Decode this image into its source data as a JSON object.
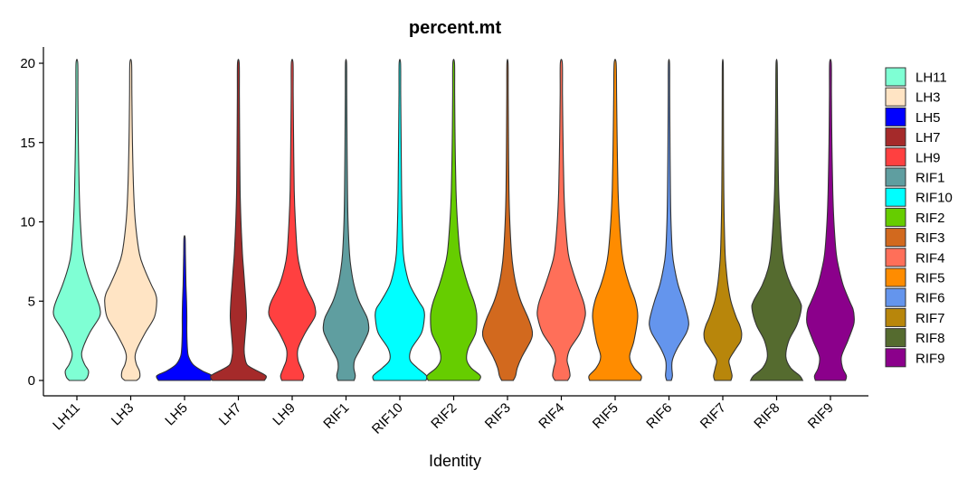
{
  "chart_data": {
    "type": "violin",
    "title": "percent.mt",
    "xlabel": "Identity",
    "ylabel": "",
    "ylim": [
      -1,
      21
    ],
    "yticks": [
      0,
      5,
      10,
      15,
      20
    ],
    "ytick_labels": [
      "0",
      "5",
      "10",
      "15",
      "20"
    ],
    "grid": false,
    "legend_position": "right",
    "categories": [
      "LH11",
      "LH3",
      "LH5",
      "LH7",
      "LH9",
      "RIF1",
      "RIF10",
      "RIF2",
      "RIF3",
      "RIF4",
      "RIF5",
      "RIF6",
      "RIF7",
      "RIF8",
      "RIF9"
    ],
    "series": [
      {
        "name": "LH11",
        "color": "#7FFFD4",
        "max": 20,
        "profile": [
          [
            0,
            0.26
          ],
          [
            0.2,
            0.36
          ],
          [
            0.6,
            0.4
          ],
          [
            1,
            0.27
          ],
          [
            1.5,
            0.17
          ],
          [
            2,
            0.2
          ],
          [
            3,
            0.44
          ],
          [
            4,
            0.78
          ],
          [
            4.5,
            0.8
          ],
          [
            5,
            0.72
          ],
          [
            6,
            0.5
          ],
          [
            7,
            0.32
          ],
          [
            8,
            0.2
          ],
          [
            10,
            0.12
          ],
          [
            12,
            0.08
          ],
          [
            15,
            0.05
          ],
          [
            18,
            0.035
          ],
          [
            20,
            0.03
          ]
        ]
      },
      {
        "name": "LH3",
        "color": "#FFE4C4",
        "max": 20,
        "profile": [
          [
            0,
            0.2
          ],
          [
            0.2,
            0.31
          ],
          [
            0.6,
            0.3
          ],
          [
            1,
            0.2
          ],
          [
            1.5,
            0.15
          ],
          [
            2,
            0.22
          ],
          [
            3,
            0.5
          ],
          [
            4,
            0.82
          ],
          [
            5,
            0.9
          ],
          [
            5.5,
            0.85
          ],
          [
            6,
            0.72
          ],
          [
            7,
            0.48
          ],
          [
            8,
            0.3
          ],
          [
            10,
            0.16
          ],
          [
            12,
            0.1
          ],
          [
            15,
            0.06
          ],
          [
            18,
            0.04
          ],
          [
            20,
            0.03
          ]
        ]
      },
      {
        "name": "LH5",
        "color": "#0000FF",
        "max": 9,
        "profile": [
          [
            0,
            0.9
          ],
          [
            0.3,
            0.96
          ],
          [
            0.6,
            0.62
          ],
          [
            1,
            0.3
          ],
          [
            1.5,
            0.14
          ],
          [
            2,
            0.1
          ],
          [
            3,
            0.08
          ],
          [
            4,
            0.08
          ],
          [
            5,
            0.07
          ],
          [
            6,
            0.05
          ],
          [
            7,
            0.04
          ],
          [
            8,
            0.03
          ],
          [
            9,
            0.02
          ]
        ]
      },
      {
        "name": "LH7",
        "color": "#A52A2A",
        "max": 20,
        "profile": [
          [
            0,
            0.9
          ],
          [
            0.3,
            0.95
          ],
          [
            0.7,
            0.55
          ],
          [
            1,
            0.3
          ],
          [
            1.5,
            0.22
          ],
          [
            2,
            0.2
          ],
          [
            3,
            0.24
          ],
          [
            4,
            0.28
          ],
          [
            5,
            0.26
          ],
          [
            6,
            0.22
          ],
          [
            7,
            0.18
          ],
          [
            8,
            0.14
          ],
          [
            10,
            0.09
          ],
          [
            12,
            0.06
          ],
          [
            15,
            0.045
          ],
          [
            18,
            0.035
          ],
          [
            20,
            0.03
          ]
        ]
      },
      {
        "name": "LH9",
        "color": "#FF4040",
        "max": 20,
        "profile": [
          [
            0,
            0.36
          ],
          [
            0.3,
            0.4
          ],
          [
            0.8,
            0.3
          ],
          [
            1.3,
            0.2
          ],
          [
            2,
            0.2
          ],
          [
            3,
            0.45
          ],
          [
            4,
            0.78
          ],
          [
            4.5,
            0.8
          ],
          [
            5,
            0.72
          ],
          [
            6,
            0.45
          ],
          [
            7,
            0.28
          ],
          [
            8,
            0.18
          ],
          [
            10,
            0.11
          ],
          [
            12,
            0.07
          ],
          [
            15,
            0.05
          ],
          [
            18,
            0.035
          ],
          [
            20,
            0.03
          ]
        ]
      },
      {
        "name": "RIF1",
        "color": "#5F9EA0",
        "max": 20,
        "profile": [
          [
            0,
            0.28
          ],
          [
            0.3,
            0.32
          ],
          [
            0.8,
            0.27
          ],
          [
            1.3,
            0.3
          ],
          [
            2,
            0.5
          ],
          [
            3,
            0.76
          ],
          [
            3.5,
            0.78
          ],
          [
            4,
            0.72
          ],
          [
            5,
            0.45
          ],
          [
            6,
            0.28
          ],
          [
            7,
            0.18
          ],
          [
            8,
            0.12
          ],
          [
            10,
            0.07
          ],
          [
            12,
            0.05
          ],
          [
            15,
            0.035
          ],
          [
            18,
            0.025
          ],
          [
            20,
            0.02
          ]
        ]
      },
      {
        "name": "RIF10",
        "color": "#00FFFF",
        "max": 20,
        "profile": [
          [
            0,
            0.9
          ],
          [
            0.3,
            0.92
          ],
          [
            0.8,
            0.6
          ],
          [
            1.3,
            0.35
          ],
          [
            2,
            0.4
          ],
          [
            3,
            0.75
          ],
          [
            4,
            0.85
          ],
          [
            4.5,
            0.82
          ],
          [
            5,
            0.65
          ],
          [
            6,
            0.35
          ],
          [
            7,
            0.2
          ],
          [
            8,
            0.12
          ],
          [
            10,
            0.08
          ],
          [
            12,
            0.06
          ],
          [
            15,
            0.045
          ],
          [
            18,
            0.03
          ],
          [
            20,
            0.025
          ]
        ]
      },
      {
        "name": "RIF2",
        "color": "#66CD00",
        "max": 20,
        "profile": [
          [
            0,
            0.88
          ],
          [
            0.3,
            0.92
          ],
          [
            0.8,
            0.6
          ],
          [
            1.3,
            0.45
          ],
          [
            2,
            0.5
          ],
          [
            3,
            0.76
          ],
          [
            4,
            0.8
          ],
          [
            4.5,
            0.77
          ],
          [
            5,
            0.7
          ],
          [
            6,
            0.5
          ],
          [
            7,
            0.34
          ],
          [
            8,
            0.22
          ],
          [
            10,
            0.13
          ],
          [
            12,
            0.08
          ],
          [
            15,
            0.05
          ],
          [
            18,
            0.035
          ],
          [
            20,
            0.03
          ]
        ]
      },
      {
        "name": "RIF3",
        "color": "#D2691E",
        "max": 20,
        "profile": [
          [
            0,
            0.2
          ],
          [
            0.3,
            0.28
          ],
          [
            0.8,
            0.34
          ],
          [
            1.5,
            0.5
          ],
          [
            2.5,
            0.8
          ],
          [
            3,
            0.86
          ],
          [
            3.5,
            0.8
          ],
          [
            4,
            0.7
          ],
          [
            5,
            0.46
          ],
          [
            6,
            0.3
          ],
          [
            7,
            0.2
          ],
          [
            8,
            0.14
          ],
          [
            10,
            0.08
          ],
          [
            12,
            0.05
          ],
          [
            15,
            0.035
          ],
          [
            18,
            0.025
          ],
          [
            20,
            0.02
          ]
        ]
      },
      {
        "name": "RIF4",
        "color": "#FF6F59",
        "max": 20,
        "profile": [
          [
            0,
            0.22
          ],
          [
            0.3,
            0.3
          ],
          [
            0.8,
            0.26
          ],
          [
            1.3,
            0.2
          ],
          [
            2,
            0.3
          ],
          [
            3,
            0.65
          ],
          [
            4,
            0.82
          ],
          [
            4.5,
            0.82
          ],
          [
            5,
            0.76
          ],
          [
            6,
            0.56
          ],
          [
            7,
            0.38
          ],
          [
            8,
            0.24
          ],
          [
            10,
            0.14
          ],
          [
            12,
            0.09
          ],
          [
            15,
            0.06
          ],
          [
            18,
            0.04
          ],
          [
            20,
            0.035
          ]
        ]
      },
      {
        "name": "RIF5",
        "color": "#FF8C00",
        "max": 20,
        "profile": [
          [
            0,
            0.88
          ],
          [
            0.3,
            0.9
          ],
          [
            0.8,
            0.65
          ],
          [
            1.5,
            0.5
          ],
          [
            2.5,
            0.65
          ],
          [
            4,
            0.78
          ],
          [
            5,
            0.7
          ],
          [
            6,
            0.5
          ],
          [
            7,
            0.34
          ],
          [
            8,
            0.24
          ],
          [
            10,
            0.15
          ],
          [
            12,
            0.1
          ],
          [
            15,
            0.07
          ],
          [
            18,
            0.05
          ],
          [
            20,
            0.035
          ]
        ]
      },
      {
        "name": "RIF6",
        "color": "#6495ED",
        "max": 20,
        "profile": [
          [
            0,
            0.08
          ],
          [
            0.3,
            0.12
          ],
          [
            0.8,
            0.1
          ],
          [
            1.3,
            0.12
          ],
          [
            2,
            0.28
          ],
          [
            3,
            0.6
          ],
          [
            3.5,
            0.68
          ],
          [
            4,
            0.65
          ],
          [
            5,
            0.5
          ],
          [
            6,
            0.32
          ],
          [
            7,
            0.2
          ],
          [
            8,
            0.12
          ],
          [
            10,
            0.07
          ],
          [
            12,
            0.05
          ],
          [
            15,
            0.035
          ],
          [
            18,
            0.025
          ],
          [
            20,
            0.02
          ]
        ]
      },
      {
        "name": "RIF7",
        "color": "#B8860B",
        "max": 20,
        "profile": [
          [
            0,
            0.28
          ],
          [
            0.3,
            0.32
          ],
          [
            0.8,
            0.26
          ],
          [
            1.3,
            0.22
          ],
          [
            2,
            0.45
          ],
          [
            2.5,
            0.62
          ],
          [
            3,
            0.65
          ],
          [
            3.5,
            0.58
          ],
          [
            4,
            0.46
          ],
          [
            5,
            0.28
          ],
          [
            6,
            0.18
          ],
          [
            7,
            0.12
          ],
          [
            8,
            0.08
          ],
          [
            10,
            0.05
          ],
          [
            12,
            0.035
          ],
          [
            15,
            0.025
          ],
          [
            18,
            0.02
          ],
          [
            20,
            0.015
          ]
        ]
      },
      {
        "name": "RIF8",
        "color": "#556B2F",
        "max": 20,
        "profile": [
          [
            0,
            0.9
          ],
          [
            0.3,
            0.8
          ],
          [
            0.8,
            0.48
          ],
          [
            1.5,
            0.32
          ],
          [
            2.5,
            0.42
          ],
          [
            3.5,
            0.7
          ],
          [
            4.5,
            0.85
          ],
          [
            5,
            0.8
          ],
          [
            6,
            0.5
          ],
          [
            7,
            0.3
          ],
          [
            8,
            0.2
          ],
          [
            10,
            0.12
          ],
          [
            12,
            0.07
          ],
          [
            15,
            0.045
          ],
          [
            18,
            0.03
          ],
          [
            20,
            0.02
          ]
        ]
      },
      {
        "name": "RIF9",
        "color": "#8B008B",
        "max": 20,
        "profile": [
          [
            0,
            0.52
          ],
          [
            0.3,
            0.55
          ],
          [
            0.8,
            0.42
          ],
          [
            1.5,
            0.38
          ],
          [
            2.5,
            0.6
          ],
          [
            3.5,
            0.8
          ],
          [
            4,
            0.82
          ],
          [
            4.5,
            0.78
          ],
          [
            5,
            0.66
          ],
          [
            6,
            0.44
          ],
          [
            7,
            0.3
          ],
          [
            8,
            0.2
          ],
          [
            10,
            0.12
          ],
          [
            12,
            0.08
          ],
          [
            15,
            0.05
          ],
          [
            18,
            0.035
          ],
          [
            20,
            0.03
          ]
        ]
      }
    ]
  }
}
